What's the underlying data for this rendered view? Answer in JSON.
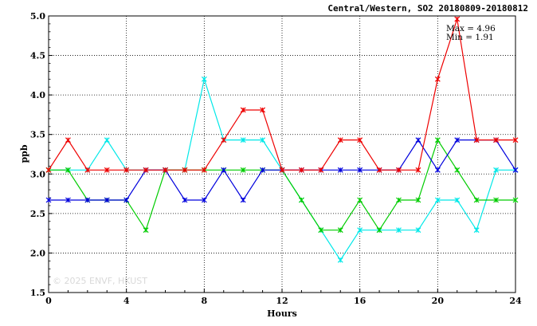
{
  "chart_data": {
    "type": "line",
    "title": "Central/Western, SO2 20180809-20180812",
    "xlabel": "Hours",
    "ylabel": "ppb",
    "xlim": [
      0,
      24
    ],
    "ylim": [
      1.5,
      5.0
    ],
    "xticks": [
      "0",
      "4",
      "8",
      "12",
      "16",
      "20",
      "24"
    ],
    "yticks": [
      "1.5",
      "2.0",
      "2.5",
      "3.0",
      "3.5",
      "4.0",
      "4.5",
      "5.0"
    ],
    "grid": true,
    "x": [
      0,
      1,
      2,
      3,
      4,
      5,
      6,
      7,
      8,
      9,
      10,
      11,
      12,
      13,
      14,
      15,
      16,
      17,
      18,
      19,
      20,
      21,
      22,
      23,
      24
    ],
    "series": [
      {
        "color": "#00e8e8",
        "values": [
          3.05,
          3.05,
          3.05,
          3.43,
          3.05,
          3.05,
          3.05,
          3.05,
          4.2,
          3.43,
          3.43,
          3.43,
          3.05,
          2.67,
          2.29,
          1.91,
          2.29,
          2.29,
          2.29,
          2.29,
          2.67,
          2.67,
          2.29,
          3.05,
          3.05
        ]
      },
      {
        "color": "#00cc00",
        "values": [
          3.05,
          3.05,
          2.67,
          2.67,
          2.67,
          2.29,
          3.05,
          3.05,
          3.05,
          3.05,
          3.05,
          3.05,
          3.05,
          2.67,
          2.29,
          2.29,
          2.67,
          2.29,
          2.67,
          2.67,
          3.43,
          3.05,
          2.67,
          2.67,
          2.67
        ]
      },
      {
        "color": "#0000dd",
        "values": [
          2.67,
          2.67,
          2.67,
          2.67,
          2.67,
          3.05,
          3.05,
          2.67,
          2.67,
          3.05,
          2.67,
          3.05,
          3.05,
          3.05,
          3.05,
          3.05,
          3.05,
          3.05,
          3.05,
          3.43,
          3.05,
          3.43,
          3.43,
          3.43,
          3.05
        ]
      },
      {
        "color": "#ee0000",
        "values": [
          3.05,
          3.43,
          3.05,
          3.05,
          3.05,
          3.05,
          3.05,
          3.05,
          3.05,
          3.43,
          3.81,
          3.81,
          3.05,
          3.05,
          3.05,
          3.43,
          3.43,
          3.05,
          3.05,
          3.05,
          4.2,
          4.96,
          3.43,
          3.43,
          3.43
        ]
      }
    ],
    "annotations": [
      "Max = 4.96",
      "Min = 1.91"
    ],
    "watermark": "© 2025  ENVF, HKUST"
  }
}
